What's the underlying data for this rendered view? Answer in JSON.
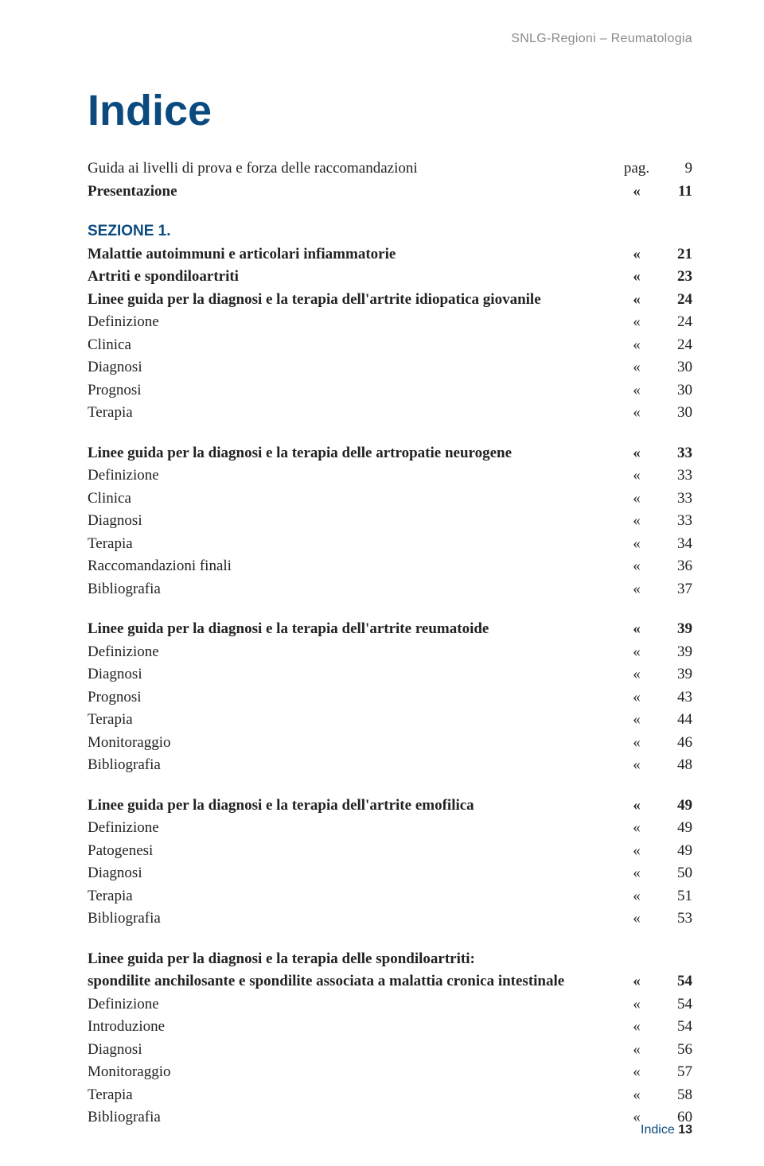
{
  "runningHeader": "SNLG-Regioni – Reumatologia",
  "title": "Indice",
  "firstMarker": "pag.",
  "quot": "«",
  "rows": [
    {
      "label": "Guida ai livelli di prova e forza delle raccomandazioni",
      "marker": "pag.",
      "page": "9",
      "bold": false
    },
    {
      "label": "Presentazione",
      "marker": "«",
      "page": "11",
      "bold": true
    },
    {
      "gap": true
    },
    {
      "label": "SEZIONE 1.",
      "section": true
    },
    {
      "label": "Malattie autoimmuni e articolari infiammatorie",
      "marker": "«",
      "page": "21",
      "bold": true
    },
    {
      "label": "Artriti e spondiloartriti",
      "marker": "«",
      "page": "23",
      "bold": true
    },
    {
      "label": "Linee guida per la diagnosi e la terapia dell'artrite idiopatica giovanile",
      "marker": "«",
      "page": "24",
      "bold": true
    },
    {
      "label": "Definizione",
      "marker": "«",
      "page": "24",
      "bold": false
    },
    {
      "label": "Clinica",
      "marker": "«",
      "page": "24",
      "bold": false
    },
    {
      "label": "Diagnosi",
      "marker": "«",
      "page": "30",
      "bold": false
    },
    {
      "label": "Prognosi",
      "marker": "«",
      "page": "30",
      "bold": false
    },
    {
      "label": "Terapia",
      "marker": "«",
      "page": "30",
      "bold": false
    },
    {
      "gap": true
    },
    {
      "label": "Linee guida per la diagnosi e la terapia delle artropatie neurogene",
      "marker": "«",
      "page": "33",
      "bold": true
    },
    {
      "label": "Definizione",
      "marker": "«",
      "page": "33",
      "bold": false
    },
    {
      "label": "Clinica",
      "marker": "«",
      "page": "33",
      "bold": false
    },
    {
      "label": "Diagnosi",
      "marker": "«",
      "page": "33",
      "bold": false
    },
    {
      "label": "Terapia",
      "marker": "«",
      "page": "34",
      "bold": false
    },
    {
      "label": "Raccomandazioni finali",
      "marker": "«",
      "page": "36",
      "bold": false
    },
    {
      "label": "Bibliografia",
      "marker": "«",
      "page": "37",
      "bold": false
    },
    {
      "gap": true
    },
    {
      "label": "Linee guida per la diagnosi e la terapia dell'artrite reumatoide",
      "marker": "«",
      "page": "39",
      "bold": true
    },
    {
      "label": "Definizione",
      "marker": "«",
      "page": "39",
      "bold": false
    },
    {
      "label": "Diagnosi",
      "marker": "«",
      "page": "39",
      "bold": false
    },
    {
      "label": "Prognosi",
      "marker": "«",
      "page": "43",
      "bold": false
    },
    {
      "label": "Terapia",
      "marker": "«",
      "page": "44",
      "bold": false
    },
    {
      "label": "Monitoraggio",
      "marker": "«",
      "page": "46",
      "bold": false
    },
    {
      "label": "Bibliografia",
      "marker": "«",
      "page": "48",
      "bold": false
    },
    {
      "gap": true
    },
    {
      "label": "Linee guida per la diagnosi e la terapia dell'artrite emofilica",
      "marker": "«",
      "page": "49",
      "bold": true
    },
    {
      "label": "Definizione",
      "marker": "«",
      "page": "49",
      "bold": false
    },
    {
      "label": "Patogenesi",
      "marker": "«",
      "page": "49",
      "bold": false
    },
    {
      "label": "Diagnosi",
      "marker": "«",
      "page": "50",
      "bold": false
    },
    {
      "label": "Terapia",
      "marker": "«",
      "page": "51",
      "bold": false
    },
    {
      "label": "Bibliografia",
      "marker": "«",
      "page": "53",
      "bold": false
    },
    {
      "gap": true
    },
    {
      "label": "Linee guida per la diagnosi e la terapia delle spondiloartriti:",
      "bold": true,
      "noPage": true
    },
    {
      "label": "spondilite anchilosante e spondilite associata a malattia cronica intestinale",
      "marker": "«",
      "page": "54",
      "bold": true
    },
    {
      "label": "Definizione",
      "marker": "«",
      "page": "54",
      "bold": false
    },
    {
      "label": "Introduzione",
      "marker": "«",
      "page": "54",
      "bold": false
    },
    {
      "label": "Diagnosi",
      "marker": "«",
      "page": "56",
      "bold": false
    },
    {
      "label": "Monitoraggio",
      "marker": "«",
      "page": "57",
      "bold": false
    },
    {
      "label": "Terapia",
      "marker": "«",
      "page": "58",
      "bold": false
    },
    {
      "label": "Bibliografia",
      "marker": "«",
      "page": "60",
      "bold": false
    }
  ],
  "footer": {
    "label": "Indice",
    "page": "13"
  }
}
